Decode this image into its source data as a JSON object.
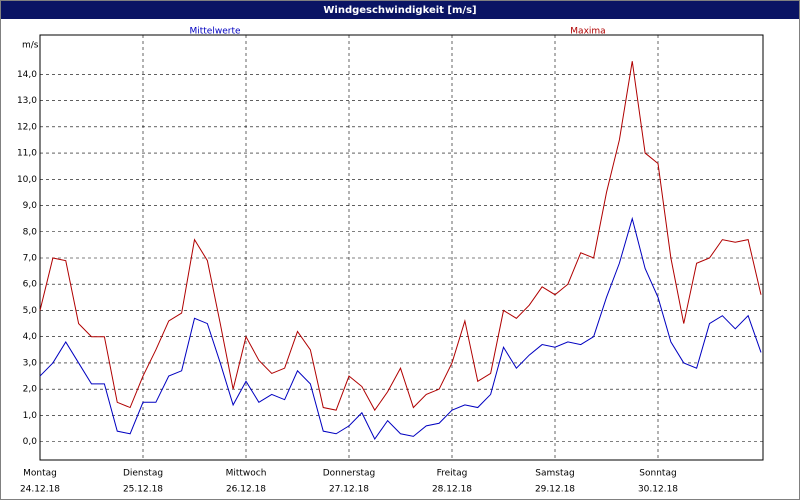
{
  "chart_data": {
    "type": "line",
    "title": "Windgeschwindigkeit [m/s]",
    "y_label": "m/s",
    "x": [
      0,
      3,
      6,
      9,
      12,
      15,
      18,
      21,
      24,
      27,
      30,
      33,
      36,
      39,
      42,
      45,
      48,
      51,
      54,
      57,
      60,
      63,
      66,
      69,
      72,
      75,
      78,
      81,
      84,
      87,
      90,
      93,
      96,
      99,
      102,
      105,
      108,
      111,
      114,
      117,
      120,
      123,
      126,
      129,
      132,
      135,
      138,
      141,
      144,
      147,
      150,
      153,
      156,
      159,
      162,
      165,
      168
    ],
    "xlim": [
      0,
      168
    ],
    "xticks": [
      {
        "value": 0,
        "label": "Montag"
      },
      {
        "value": 24,
        "label": "Dienstag"
      },
      {
        "value": 48,
        "label": "Mittwoch"
      },
      {
        "value": 72,
        "label": "Donnerstag"
      },
      {
        "value": 96,
        "label": "Freitag"
      },
      {
        "value": 120,
        "label": "Samstag"
      },
      {
        "value": 144,
        "label": "Sonntag"
      }
    ],
    "xtick_dates": [
      "24.12.18",
      "25.12.18",
      "26.12.18",
      "27.12.18",
      "28.12.18",
      "29.12.18",
      "30.12.18"
    ],
    "ylim": [
      -0.7,
      15.5
    ],
    "yticks": [
      {
        "value": 0,
        "label": "0,0"
      },
      {
        "value": 1,
        "label": "1,0"
      },
      {
        "value": 2,
        "label": "2,0"
      },
      {
        "value": 3,
        "label": "3,0"
      },
      {
        "value": 4,
        "label": "4,0"
      },
      {
        "value": 5,
        "label": "5,0"
      },
      {
        "value": 6,
        "label": "6,0"
      },
      {
        "value": 7,
        "label": "7,0"
      },
      {
        "value": 8,
        "label": "8,0"
      },
      {
        "value": 9,
        "label": "9,0"
      },
      {
        "value": 10,
        "label": "10,0"
      },
      {
        "value": 11,
        "label": "11,0"
      },
      {
        "value": 12,
        "label": "12,0"
      },
      {
        "value": 13,
        "label": "13,0"
      },
      {
        "value": 14,
        "label": "14,0"
      }
    ],
    "grid": true,
    "series": [
      {
        "name": "Mittelwerte",
        "color": "#0000c0",
        "values": [
          2.5,
          3.0,
          3.8,
          3.0,
          2.2,
          2.2,
          0.4,
          0.3,
          1.5,
          1.5,
          2.5,
          2.7,
          4.7,
          4.5,
          3.0,
          1.4,
          2.3,
          1.5,
          1.8,
          1.6,
          2.7,
          2.2,
          0.4,
          0.3,
          0.6,
          1.1,
          0.1,
          0.8,
          0.3,
          0.2,
          0.6,
          0.7,
          1.2,
          1.4,
          1.3,
          1.8,
          3.6,
          2.8,
          3.3,
          3.7,
          3.6,
          3.8,
          3.7,
          4.0,
          5.5,
          6.8,
          8.5,
          6.6,
          5.5,
          3.8,
          3.0,
          2.8,
          4.5,
          4.8,
          4.3,
          4.8,
          3.4
        ]
      },
      {
        "name": "Maxima",
        "color": "#b00000",
        "values": [
          5.0,
          7.0,
          6.9,
          4.5,
          4.0,
          4.0,
          1.5,
          1.3,
          2.5,
          3.5,
          4.6,
          4.9,
          7.7,
          6.9,
          4.5,
          2.0,
          4.0,
          3.1,
          2.6,
          2.8,
          4.2,
          3.5,
          1.3,
          1.2,
          2.5,
          2.1,
          1.2,
          1.9,
          2.8,
          1.3,
          1.8,
          2.0,
          3.0,
          4.6,
          2.3,
          2.6,
          5.0,
          4.7,
          5.2,
          5.9,
          5.6,
          6.0,
          7.2,
          7.0,
          9.5,
          11.5,
          14.5,
          11.0,
          10.6,
          7.0,
          4.5,
          6.8,
          7.0,
          7.7,
          7.6,
          7.7,
          5.6
        ]
      }
    ]
  }
}
